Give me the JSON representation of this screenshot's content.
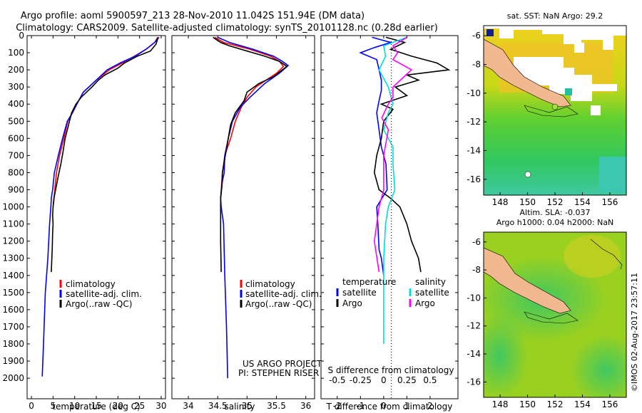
{
  "header": {
    "line1": "Argo profile: aoml 5900597_213 28-Nov-2010 11.042S 151.94E (DM data)",
    "line2": "Climatology: CARS2009. Satellite-adjusted climatology: synTS_20101128.nc (0.28d earlier)"
  },
  "colors": {
    "climatology": "#ff0000",
    "satellite": "#0000ff",
    "argo": "#000000",
    "sat_salinity": "#00dddd",
    "argo_salinity": "#ff00ff",
    "land": "#f2b890",
    "sea": "#10c010"
  },
  "chart_data": [
    {
      "type": "line",
      "name": "temperature",
      "xlabel": "temperature (deg C)",
      "ylabel": "",
      "xlim": [
        -1,
        31
      ],
      "ylim": [
        2120,
        0
      ],
      "xticks": [
        "0",
        "5",
        "10",
        "15",
        "20",
        "25",
        "30"
      ],
      "xtick_values": [
        0,
        5,
        10,
        15,
        20,
        25,
        30
      ],
      "yticks": [
        "0",
        "100",
        "200",
        "300",
        "400",
        "500",
        "600",
        "700",
        "800",
        "900",
        "1000",
        "1100",
        "1200",
        "1300",
        "1400",
        "1500",
        "1600",
        "1700",
        "1800",
        "1900",
        "2000"
      ],
      "ytick_values": [
        0,
        100,
        200,
        300,
        400,
        500,
        600,
        700,
        800,
        900,
        1000,
        1100,
        1200,
        1300,
        1400,
        1500,
        1600,
        1700,
        1800,
        1900,
        2000
      ],
      "legend": [
        "climatology",
        "satellite-adj. clim.",
        "Argo(..raw -QC)"
      ],
      "series": [
        {
          "name": "climatology",
          "color": "#ff0000",
          "x": [
            29.2,
            28.5,
            26.5,
            23.8,
            21,
            18,
            15,
            12,
            10.5,
            9.5,
            8.4,
            7.5,
            6.5,
            5.8,
            5.4,
            5.2,
            5.0
          ],
          "y": [
            10,
            40,
            80,
            120,
            160,
            200,
            260,
            330,
            400,
            450,
            500,
            600,
            700,
            800,
            900,
            960,
            1000
          ]
        },
        {
          "name": "satellite-adj. clim.",
          "color": "#0000ff",
          "x": [
            29.5,
            28.5,
            26.5,
            24,
            20.5,
            17.5,
            15,
            12,
            10.5,
            9.5,
            8.3,
            7.2,
            6.2,
            5.3,
            4.9,
            4.6,
            4.5,
            4.2,
            3.8,
            3.2,
            2.8,
            2.5
          ],
          "y": [
            10,
            40,
            80,
            120,
            160,
            200,
            260,
            330,
            400,
            450,
            500,
            600,
            700,
            800,
            900,
            950,
            1000,
            1100,
            1300,
            1500,
            1800,
            1990
          ]
        },
        {
          "name": "Argo(..raw -QC)",
          "color": "#000000",
          "x": [
            29.3,
            28.8,
            27.5,
            24.5,
            21.5,
            20,
            17,
            15.5,
            14,
            11.5,
            10.3,
            9.3,
            8.6,
            7.8,
            7.3,
            6.8,
            6.2,
            5.6,
            5.2,
            5.0,
            4.9,
            5.0,
            4.9,
            4.8,
            4.6
          ],
          "y": [
            10,
            50,
            90,
            120,
            160,
            190,
            230,
            260,
            300,
            360,
            400,
            450,
            520,
            600,
            680,
            750,
            820,
            900,
            950,
            1000,
            1050,
            1100,
            1150,
            1250,
            1380
          ]
        }
      ]
    },
    {
      "type": "line",
      "name": "salinity",
      "xlabel": "salinity",
      "ylabel": "",
      "xlim": [
        33.72,
        36.15
      ],
      "ylim": [
        2120,
        0
      ],
      "xticks": [
        "34",
        "34.5",
        "35",
        "35.5",
        "36"
      ],
      "xtick_values": [
        34,
        34.5,
        35,
        35.5,
        36
      ],
      "legend": [
        "climatology",
        "satellite-adj. clim.",
        "Argo(..raw -QC)"
      ],
      "annotations": [
        "US ARGO PROJECT",
        "PI: STEPHEN RISER"
      ],
      "series": [
        {
          "name": "climatology",
          "color": "#ff0000",
          "x": [
            34.45,
            34.6,
            35.05,
            35.4,
            35.55,
            35.62,
            35.5,
            35.15,
            35.0,
            34.9,
            34.8,
            34.72,
            34.62,
            34.58,
            34.56,
            34.55,
            34.55
          ],
          "y": [
            10,
            40,
            80,
            120,
            150,
            180,
            220,
            300,
            360,
            420,
            500,
            600,
            700,
            800,
            900,
            950,
            1000
          ]
        },
        {
          "name": "satellite-adj. clim.",
          "color": "#0000ff",
          "x": [
            34.5,
            34.7,
            35.1,
            35.45,
            35.6,
            35.7,
            35.55,
            35.3,
            35.05,
            34.88,
            34.75,
            34.68,
            34.62,
            34.61,
            34.58,
            34.55,
            34.56,
            34.6,
            34.62,
            34.65,
            34.67
          ],
          "y": [
            10,
            40,
            80,
            120,
            150,
            175,
            220,
            280,
            360,
            420,
            500,
            600,
            700,
            800,
            850,
            950,
            1000,
            1100,
            1400,
            1700,
            2000
          ]
        },
        {
          "name": "Argo(..raw -QC)",
          "color": "#000000",
          "x": [
            34.42,
            34.55,
            34.7,
            35.0,
            35.3,
            35.55,
            35.68,
            35.6,
            35.45,
            35.2,
            35.0,
            34.95,
            34.8,
            34.72,
            34.68,
            34.63,
            34.58,
            34.57,
            34.55,
            34.55,
            34.55,
            34.56
          ],
          "y": [
            10,
            40,
            60,
            90,
            120,
            150,
            180,
            200,
            240,
            280,
            330,
            380,
            450,
            520,
            600,
            700,
            800,
            880,
            950,
            1050,
            1200,
            1380
          ]
        }
      ]
    },
    {
      "type": "line",
      "name": "difference",
      "xlabel": "T difference from climatology",
      "xlabel_top": "S difference from climatology",
      "xlim": [
        -2.7,
        3.2
      ],
      "ylim": [
        2120,
        0
      ],
      "xticks": [
        "-2",
        "-1",
        "0",
        "1",
        "2"
      ],
      "xtick_values": [
        -2,
        -1,
        0,
        1,
        2
      ],
      "xticks_top": [
        "-0.5",
        "-0.25",
        "0",
        "0.25",
        "0.5"
      ],
      "xtick_top_values": [
        -0.5,
        -0.25,
        0,
        0.25,
        0.5
      ],
      "legend": [
        "temperature",
        "satellite",
        "Argo",
        "salinity",
        "satellite",
        "Argo"
      ],
      "series": [
        {
          "name": "temperature satellite",
          "color": "#0000ff",
          "x": [
            -0.5,
            0.3,
            -0.4,
            -1.0,
            -0.3,
            -0.2,
            -0.1,
            -0.1,
            -0.2,
            -0.3,
            -0.2,
            -0.1,
            0.1,
            0.15,
            -0.3,
            -0.25,
            -0.2,
            -0.1,
            0
          ],
          "y": [
            10,
            40,
            70,
            100,
            140,
            200,
            260,
            320,
            380,
            450,
            550,
            650,
            750,
            900,
            1000,
            1100,
            1250,
            1300,
            1400
          ]
        },
        {
          "name": "temperature Argo",
          "color": "#000000",
          "x": [
            0.1,
            0.9,
            0.3,
            1.2,
            2.3,
            2.8,
            1.0,
            1.5,
            0.5,
            1.0,
            -0.1,
            0.4,
            0.0,
            -0.1,
            -0.3,
            -0.4,
            -0.2,
            0.3,
            0.7,
            1.0,
            1.2,
            1.5,
            1.6
          ],
          "y": [
            10,
            40,
            80,
            120,
            160,
            200,
            230,
            260,
            300,
            350,
            400,
            430,
            500,
            600,
            700,
            800,
            900,
            950,
            1000,
            1100,
            1200,
            1300,
            1380
          ]
        },
        {
          "name": "salinity satellite",
          "color": "#00dddd",
          "x": [
            0.25,
            0.0,
            0.02,
            -0.05,
            0.05,
            0.1,
            0.05,
            0.0,
            0.1,
            0.1,
            0.12,
            0.05,
            0.02,
            0.0,
            0.0,
            0.0
          ],
          "y": [
            10,
            60,
            120,
            200,
            300,
            400,
            450,
            550,
            650,
            750,
            900,
            1000,
            1100,
            1300,
            1600,
            1800
          ]
        },
        {
          "name": "salinity Argo",
          "color": "#ff00ff",
          "x": [
            0.25,
            0.1,
            0.15,
            0.1,
            0.3,
            0.2,
            0.1,
            0.1,
            0.05,
            -0.02,
            0.05,
            0.0,
            0.0,
            -0.05,
            -0.1,
            -0.05
          ],
          "y": [
            10,
            60,
            100,
            140,
            200,
            250,
            300,
            360,
            400,
            480,
            550,
            700,
            900,
            1000,
            1200,
            1380
          ]
        }
      ]
    }
  ],
  "legends": {
    "panel1": [
      "climatology",
      "satellite-adj. clim.",
      "Argo(..raw -QC)"
    ],
    "panel2": [
      "climatology",
      "satellite-adj. clim.",
      "Argo(..raw -QC)"
    ],
    "panel3": {
      "t_title": "temperature",
      "t_sat": "satellite",
      "t_argo": "Argo",
      "s_title": "salinity",
      "s_sat": "satellite",
      "s_argo": "Argo"
    }
  },
  "credit": {
    "line1": "US ARGO PROJECT",
    "line2": "PI: STEPHEN RISER"
  },
  "map1": {
    "title": "sat. SST: NaN  Argo: 29.2",
    "xticks": [
      "148",
      "150",
      "152",
      "154",
      "156"
    ],
    "yticks": [
      "-6",
      "-8",
      "-10",
      "-12",
      "-14",
      "-16"
    ]
  },
  "map2": {
    "title1": "Altim. SLA: -0.037",
    "title2": "Argo h1000: 0.04 h2000: NaN",
    "xticks": [
      "148",
      "150",
      "152",
      "154",
      "156"
    ],
    "yticks": [
      "-6",
      "-8",
      "-10",
      "-12",
      "-14",
      "-16"
    ]
  },
  "side_label": "©IMOS 02-Aug-2017 23:57:11"
}
